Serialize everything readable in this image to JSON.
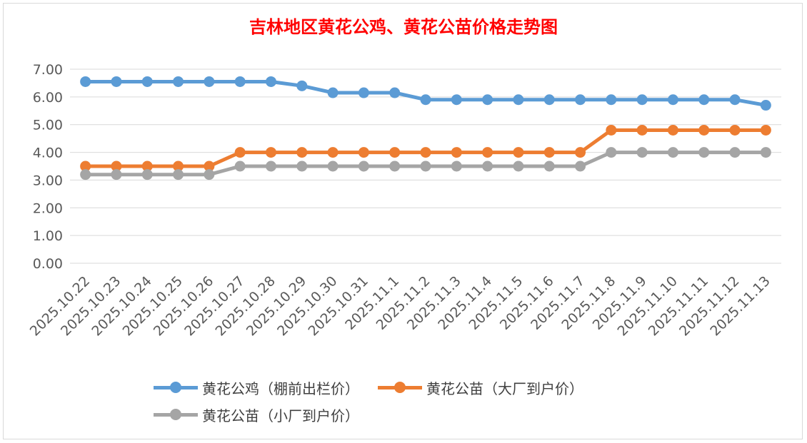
{
  "chart_data": {
    "type": "line",
    "title": "吉林地区黄花公鸡、黄花公苗价格走势图",
    "categories": [
      "2025.10.22",
      "2025.10.23",
      "2025.10.24",
      "2025.10.25",
      "2025.10.26",
      "2025.10.27",
      "2025.10.28",
      "2025.10.29",
      "2025.10.30",
      "2025.10.31",
      "2025.11.1",
      "2025.11.2",
      "2025.11.3",
      "2025.11.4",
      "2025.11.5",
      "2025.11.6",
      "2025.11.7",
      "2025.11.8",
      "2025.11.9",
      "2025.11.10",
      "2025.11.11",
      "2025.11.12",
      "2025.11.13"
    ],
    "yticks": [
      "0.00",
      "1.00",
      "2.00",
      "3.00",
      "4.00",
      "5.00",
      "6.00",
      "7.00"
    ],
    "ylim": [
      0,
      7
    ],
    "grid": true,
    "legend_position": "bottom",
    "series": [
      {
        "name": "黄花公鸡（棚前出栏价）",
        "color": "#5b9bd5",
        "values": [
          6.55,
          6.55,
          6.55,
          6.55,
          6.55,
          6.55,
          6.55,
          6.4,
          6.15,
          6.15,
          6.15,
          5.9,
          5.9,
          5.9,
          5.9,
          5.9,
          5.9,
          5.9,
          5.9,
          5.9,
          5.9,
          5.9,
          5.7
        ]
      },
      {
        "name": "黄花公苗（大厂到户价）",
        "color": "#ed7d31",
        "values": [
          3.5,
          3.5,
          3.5,
          3.5,
          3.5,
          4.0,
          4.0,
          4.0,
          4.0,
          4.0,
          4.0,
          4.0,
          4.0,
          4.0,
          4.0,
          4.0,
          4.0,
          4.8,
          4.8,
          4.8,
          4.8,
          4.8,
          4.8
        ]
      },
      {
        "name": "黄花公苗（小厂到户价）",
        "color": "#a5a5a5",
        "values": [
          3.2,
          3.2,
          3.2,
          3.2,
          3.2,
          3.5,
          3.5,
          3.5,
          3.5,
          3.5,
          3.5,
          3.5,
          3.5,
          3.5,
          3.5,
          3.5,
          3.5,
          4.0,
          4.0,
          4.0,
          4.0,
          4.0,
          4.0
        ]
      }
    ]
  }
}
